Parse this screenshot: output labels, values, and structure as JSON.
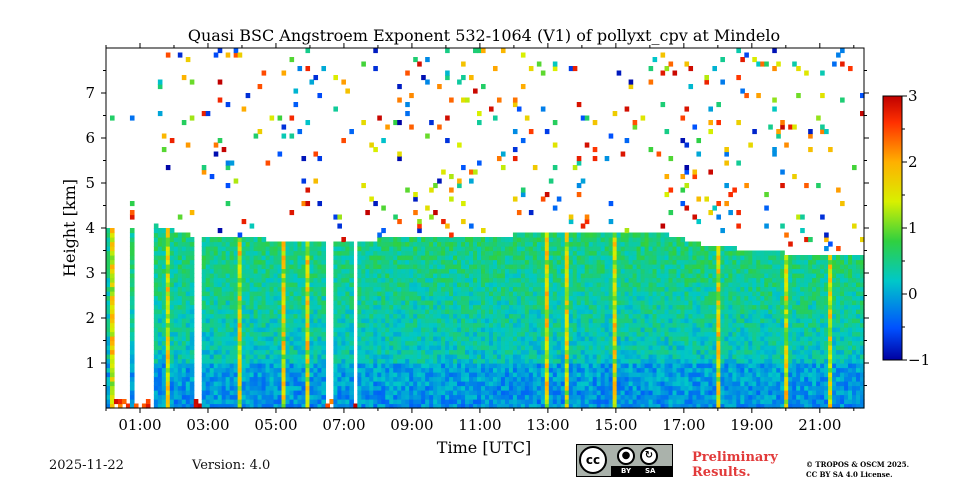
{
  "chart_data": {
    "type": "heatmap",
    "title": "Quasi BSC Angstroem Exponent 532-1064 (V1) of pollyxt_cpv at Mindelo",
    "xlabel": "Time [UTC]",
    "ylabel": "Height [km]",
    "xlim_hours": [
      0.0,
      22.3
    ],
    "ylim": [
      0,
      8
    ],
    "x_tick_hours": [
      1,
      3,
      5,
      7,
      9,
      11,
      13,
      15,
      17,
      19,
      21
    ],
    "x_tick_labels": [
      "01:00",
      "03:00",
      "05:00",
      "07:00",
      "09:00",
      "11:00",
      "13:00",
      "15:00",
      "17:00",
      "19:00",
      "21:00"
    ],
    "y_ticks": [
      1,
      2,
      3,
      4,
      5,
      6,
      7
    ],
    "y_tick_labels": [
      "1",
      "2",
      "3",
      "4",
      "5",
      "6",
      "7"
    ],
    "colorbar": {
      "min": -1,
      "max": 3,
      "ticks": [
        -1,
        0,
        1,
        2,
        3
      ],
      "tick_labels": [
        "−1",
        "0",
        "1",
        "2",
        "3"
      ],
      "colormap": "jet"
    },
    "cloud_top_km": [
      [
        0.0,
        4.0
      ],
      [
        1.5,
        4.05
      ],
      [
        2.5,
        3.85
      ],
      [
        4.0,
        3.8
      ],
      [
        6.0,
        3.65
      ],
      [
        8.0,
        3.75
      ],
      [
        10.0,
        3.8
      ],
      [
        12.0,
        3.85
      ],
      [
        14.0,
        3.9
      ],
      [
        15.5,
        3.95
      ],
      [
        16.5,
        3.85
      ],
      [
        17.5,
        3.65
      ],
      [
        18.5,
        3.55
      ],
      [
        20.0,
        3.45
      ],
      [
        22.3,
        3.35
      ]
    ],
    "gaps_hours": [
      [
        0.25,
        0.7
      ],
      [
        0.85,
        1.4
      ],
      [
        2.55,
        2.8
      ],
      [
        6.5,
        6.65
      ],
      [
        7.3,
        7.45
      ]
    ],
    "notes": "Mostly 0–1 (blue–green) within aerosol layer below ~4 km; noisy speckle above."
  },
  "footer": {
    "date": "2025-11-22",
    "version": "Version: 4.0",
    "preliminary_line1": "Preliminary",
    "preliminary_line2": "Results.",
    "copyright_line1": "© TROPOS & OSCM 2025.",
    "copyright_line2": "CC BY SA 4.0 License.",
    "license_by": "BY",
    "license_sa": "SA",
    "license_cc": "cc"
  }
}
